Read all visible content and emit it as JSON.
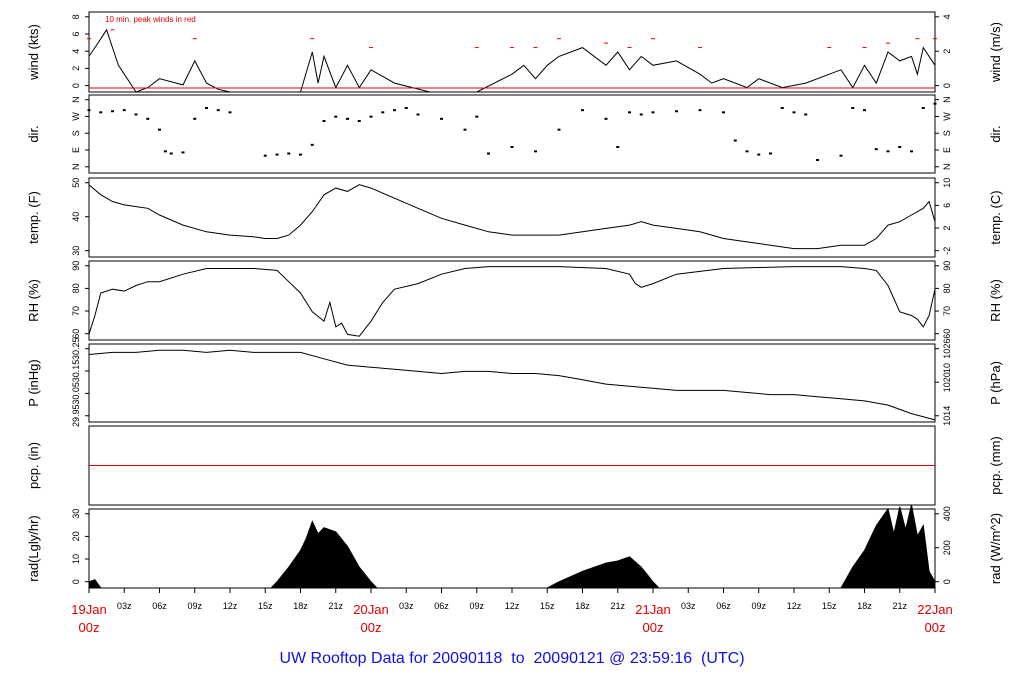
{
  "footer": {
    "title": "UW Rooftop Data for 20090118  to  20090121 @ 23:59:16  (UTC)"
  },
  "colors": {
    "trace": "#000000",
    "peak": "#e00000",
    "date_label": "#e00000",
    "title": "#1010e0",
    "frame": "#000000"
  },
  "time_axis": {
    "range_hours": [
      0,
      72
    ],
    "day_labels": [
      {
        "hour": 0,
        "date": "19Jan",
        "time": "00z"
      },
      {
        "hour": 24,
        "date": "20Jan",
        "time": "00z"
      },
      {
        "hour": 48,
        "date": "21Jan",
        "time": "00z"
      },
      {
        "hour": 72,
        "date": "22Jan",
        "time": "00z"
      }
    ],
    "minor_labels": [
      "03z",
      "06z",
      "09z",
      "12z",
      "15z",
      "18z",
      "21z"
    ]
  },
  "chart_data": [
    {
      "id": "wind",
      "type": "line",
      "ylabel_left": "wind (kts)",
      "ylabel_right": "wind (m/s)",
      "annotation": "10 min. peak winds in red",
      "ylim": [
        0,
        9
      ],
      "ticks_left": [
        "0",
        "2",
        "4",
        "6",
        "8"
      ],
      "ticks_right": [
        "0",
        "2",
        "4"
      ],
      "series": [
        {
          "name": "",
          "x": [
            0,
            0.5,
            1,
            1.5,
            2,
            2.5,
            3,
            4,
            5,
            6,
            8,
            9,
            10,
            11,
            12,
            13,
            15,
            17,
            18,
            19,
            19.5,
            20,
            21,
            22,
            23,
            24,
            26,
            29,
            30,
            31,
            33,
            36,
            37,
            38,
            39,
            40,
            42,
            44,
            45,
            46,
            47,
            48,
            50,
            52,
            53,
            54,
            55,
            56,
            57,
            59,
            61,
            63,
            64,
            65,
            66,
            67,
            68,
            69,
            70,
            70.5,
            71,
            72
          ],
          "y": [
            4,
            5,
            6,
            7,
            5,
            3,
            2,
            0,
            0.5,
            1.5,
            0.8,
            3.5,
            1,
            0.3,
            0,
            0,
            0,
            0,
            0,
            4.5,
            1,
            4,
            0.5,
            3,
            0.5,
            2.5,
            1,
            0,
            0,
            0,
            0,
            2,
            3,
            1.5,
            3,
            4,
            5,
            3,
            4.5,
            2.5,
            4,
            3,
            3.5,
            2,
            1,
            1.5,
            1,
            0.5,
            1.5,
            0.5,
            1,
            2,
            2.5,
            0.5,
            3,
            1,
            4.5,
            3.5,
            4,
            2,
            5,
            3
          ]
        },
        {
          "name": "",
          "x": [
            0,
            2,
            9,
            19,
            24,
            33,
            36,
            38,
            40,
            44,
            46,
            48,
            52,
            63,
            66,
            68,
            70.5,
            72
          ],
          "y": [
            6,
            7,
            6,
            6,
            5,
            5,
            5,
            5,
            6,
            5.5,
            5,
            6,
            5,
            5,
            5,
            5.5,
            6,
            6
          ],
          "color": "peak"
        }
      ]
    },
    {
      "id": "dir",
      "type": "scatter",
      "ylabel_left": "dir.",
      "ylabel_right": "dir.",
      "ticks_left": [
        "N",
        "E",
        "S",
        "W",
        "N"
      ],
      "ticks_right": [
        "N",
        "E",
        "S",
        "W",
        "N"
      ],
      "ylim": [
        0,
        360
      ],
      "series": [
        {
          "name": "",
          "x": [
            0,
            1,
            2,
            3,
            4,
            5,
            6,
            6.5,
            7,
            8,
            9,
            10,
            11,
            12,
            15,
            16,
            17,
            18,
            19,
            20,
            21,
            22,
            23,
            24,
            25,
            26,
            27,
            28,
            30,
            32,
            33,
            34,
            36,
            38,
            40,
            42,
            44,
            45,
            46,
            47,
            48,
            50,
            52,
            54,
            55,
            56,
            57,
            58,
            59,
            60,
            61,
            62,
            64,
            65,
            66,
            67,
            68,
            69,
            70,
            71,
            72
          ],
          "y": [
            290,
            280,
            285,
            290,
            270,
            250,
            200,
            100,
            90,
            95,
            250,
            300,
            290,
            280,
            80,
            85,
            90,
            85,
            130,
            240,
            260,
            250,
            240,
            260,
            280,
            290,
            300,
            270,
            250,
            200,
            260,
            90,
            120,
            100,
            200,
            290,
            250,
            120,
            280,
            270,
            280,
            285,
            290,
            280,
            150,
            100,
            85,
            90,
            300,
            280,
            270,
            60,
            80,
            300,
            290,
            110,
            100,
            120,
            100,
            300,
            320
          ]
        }
      ]
    },
    {
      "id": "temp",
      "type": "line",
      "ylabel_left": "temp. (F)",
      "ylabel_right": "temp. (C)",
      "ylim": [
        28.5,
        52
      ],
      "ticks_left": [
        "30",
        "40",
        "50"
      ],
      "ticks_right": [
        "-2",
        "2",
        "6",
        "10"
      ],
      "series": [
        {
          "name": "",
          "x": [
            0,
            1,
            2,
            3,
            4,
            5,
            6,
            8,
            10,
            12,
            14,
            15,
            16,
            17,
            18,
            19,
            20,
            21,
            22,
            23,
            24,
            26,
            28,
            30,
            32,
            34,
            36,
            38,
            40,
            42,
            44,
            46,
            47,
            48,
            50,
            52,
            54,
            56,
            58,
            60,
            62,
            64,
            66,
            67,
            68,
            69,
            70,
            71,
            71.5,
            72
          ],
          "y": [
            50,
            47,
            45,
            44,
            43.5,
            43,
            41,
            38,
            36,
            35,
            34.5,
            34,
            34,
            35,
            38,
            42,
            47,
            49,
            48,
            50,
            49,
            46,
            43,
            40,
            38,
            36,
            35,
            35,
            35,
            36,
            37,
            38,
            39,
            38,
            37,
            36,
            34,
            33,
            32,
            31,
            31,
            32,
            32,
            34,
            38,
            39,
            41,
            43,
            45,
            39
          ]
        }
      ]
    },
    {
      "id": "rh",
      "type": "line",
      "ylabel_left": "RH (%)",
      "ylabel_right": "RH (%)",
      "ylim": [
        55,
        97
      ],
      "ticks_left": [
        "60",
        "70",
        "80",
        "90"
      ],
      "ticks_right": [
        "60",
        "70",
        "80",
        "90"
      ],
      "series": [
        {
          "name": "",
          "x": [
            0,
            0.5,
            1,
            2,
            3,
            4,
            5,
            6,
            8,
            10,
            12,
            14,
            16,
            17,
            18,
            19,
            20,
            20.5,
            21,
            21.5,
            22,
            23,
            24,
            25,
            26,
            28,
            30,
            32,
            34,
            36,
            38,
            40,
            44,
            46,
            46.5,
            47,
            48,
            50,
            54,
            60,
            64,
            66,
            67,
            68,
            69,
            70,
            70.5,
            71,
            71.5,
            72
          ],
          "y": [
            58,
            68,
            80,
            82,
            81,
            84,
            86,
            86,
            90,
            93,
            93,
            93,
            92,
            86,
            80,
            70,
            65,
            75,
            62,
            64,
            58,
            57,
            65,
            75,
            82,
            85,
            90,
            93,
            94,
            94,
            94,
            94,
            93,
            90,
            85,
            83,
            85,
            90,
            93,
            94,
            94,
            93,
            92,
            84,
            70,
            68,
            66,
            62,
            68,
            82
          ]
        }
      ]
    },
    {
      "id": "pressure",
      "type": "line",
      "ylabel_left": "P (inHg)",
      "ylabel_right": "P (hPa)",
      "ylim": [
        29.92,
        30.29
      ],
      "ticks_left": [
        "29.95",
        "30.05",
        "30.15",
        "30.25"
      ],
      "ticks_right": [
        "1014",
        "1020",
        "1026"
      ],
      "ticks_right_overlap": "10",
      "series": [
        {
          "name": "",
          "x": [
            0,
            2,
            4,
            6,
            8,
            10,
            12,
            14,
            16,
            18,
            20,
            22,
            24,
            26,
            28,
            30,
            32,
            34,
            36,
            38,
            40,
            42,
            44,
            46,
            48,
            50,
            52,
            54,
            56,
            58,
            60,
            62,
            64,
            66,
            68,
            70,
            72
          ],
          "y": [
            30.24,
            30.25,
            30.25,
            30.26,
            30.26,
            30.25,
            30.26,
            30.25,
            30.25,
            30.25,
            30.22,
            30.19,
            30.18,
            30.17,
            30.16,
            30.15,
            30.16,
            30.16,
            30.15,
            30.15,
            30.14,
            30.12,
            30.1,
            30.09,
            30.08,
            30.07,
            30.07,
            30.07,
            30.06,
            30.05,
            30.05,
            30.04,
            30.03,
            30.02,
            30.0,
            29.96,
            29.93
          ]
        }
      ]
    },
    {
      "id": "precip",
      "type": "line",
      "ylabel_left": "pcp. (in)",
      "ylabel_right": "pcp. (mm)",
      "ylim": [
        0,
        1
      ],
      "ticks_left": [],
      "ticks_right": [],
      "series": [
        {
          "name": "",
          "x": [
            0,
            72
          ],
          "y": [
            0.5,
            0.5
          ],
          "color": "peak"
        }
      ]
    },
    {
      "id": "radiation",
      "type": "area",
      "ylabel_left": "rad(Lgly/hr)",
      "ylabel_right": "rad (W/m^2)",
      "ylim": [
        0,
        38
      ],
      "ticks_left": [
        "0",
        "10",
        "20",
        "30"
      ],
      "ticks_right": [
        "0",
        "200",
        "400"
      ],
      "series": [
        {
          "name": "",
          "x": [
            0,
            0.5,
            1,
            15.5,
            16,
            17,
            18,
            18.5,
            19,
            19.5,
            20,
            21,
            22,
            23,
            24,
            24.5,
            25,
            39,
            40,
            42,
            44,
            45,
            46,
            47,
            48,
            48.5,
            64,
            65,
            66,
            67,
            68,
            68.5,
            69,
            69.5,
            70,
            70.5,
            71,
            71.5,
            72
          ],
          "y": [
            3,
            4,
            0,
            0,
            3,
            10,
            18,
            24,
            32,
            26,
            29,
            27,
            20,
            10,
            3,
            0,
            0,
            0,
            3,
            8,
            12,
            13,
            15,
            10,
            3,
            0,
            0,
            10,
            18,
            30,
            38,
            26,
            39,
            28,
            40,
            25,
            30,
            8,
            3
          ]
        }
      ]
    }
  ]
}
